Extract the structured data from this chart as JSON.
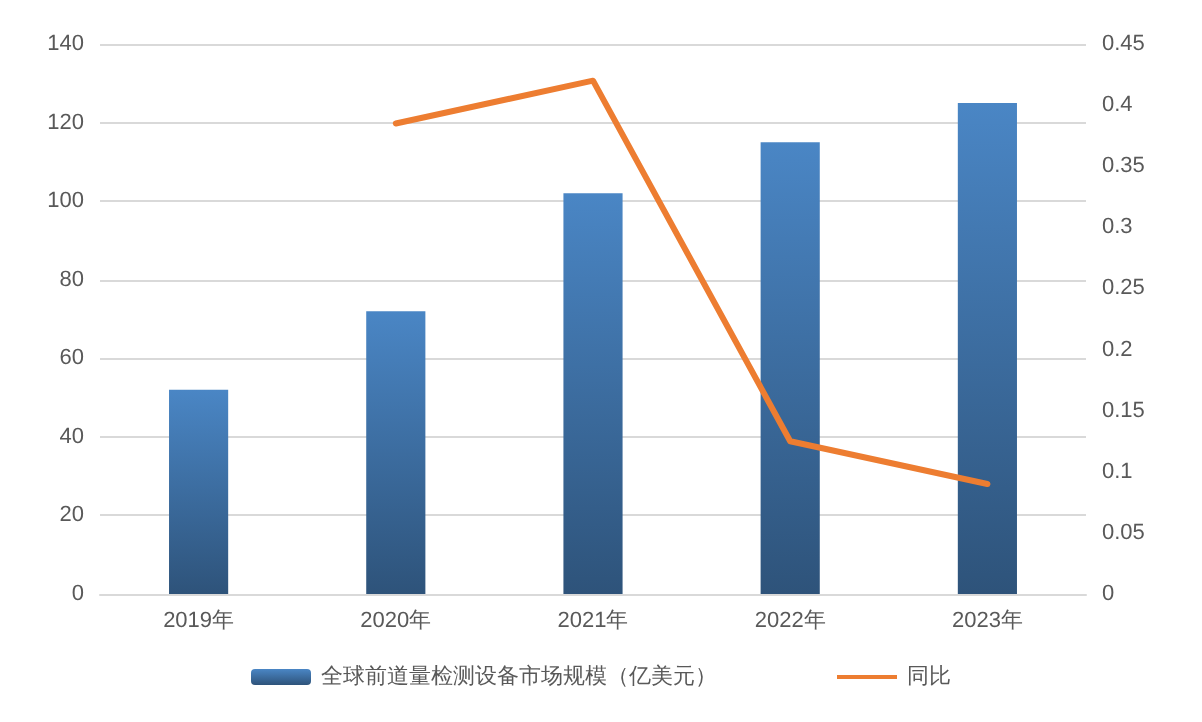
{
  "chart_data": {
    "type": "bar",
    "categories": [
      "2019年",
      "2020年",
      "2021年",
      "2022年",
      "2023年"
    ],
    "series": [
      {
        "name": "全球前道量检测设备市场规模（亿美元）",
        "color": "#4a86c5",
        "values": [
          52,
          72,
          102,
          115,
          125
        ]
      },
      {
        "name": "同比",
        "type": "line",
        "axis": "y2",
        "color": "#ed7d31",
        "values": [
          null,
          0.385,
          0.42,
          0.125,
          0.09
        ]
      }
    ],
    "ylim": [
      0,
      140
    ],
    "yticks": [
      0,
      20,
      40,
      60,
      80,
      100,
      120,
      140
    ],
    "y2lim": [
      0,
      0.45
    ],
    "y2ticks": [
      0,
      0.05,
      0.1,
      0.15,
      0.2,
      0.25,
      0.3,
      0.35,
      0.4,
      0.45
    ],
    "grid": "y",
    "legend": "bottom",
    "marker": "none",
    "line_style": "solid"
  }
}
